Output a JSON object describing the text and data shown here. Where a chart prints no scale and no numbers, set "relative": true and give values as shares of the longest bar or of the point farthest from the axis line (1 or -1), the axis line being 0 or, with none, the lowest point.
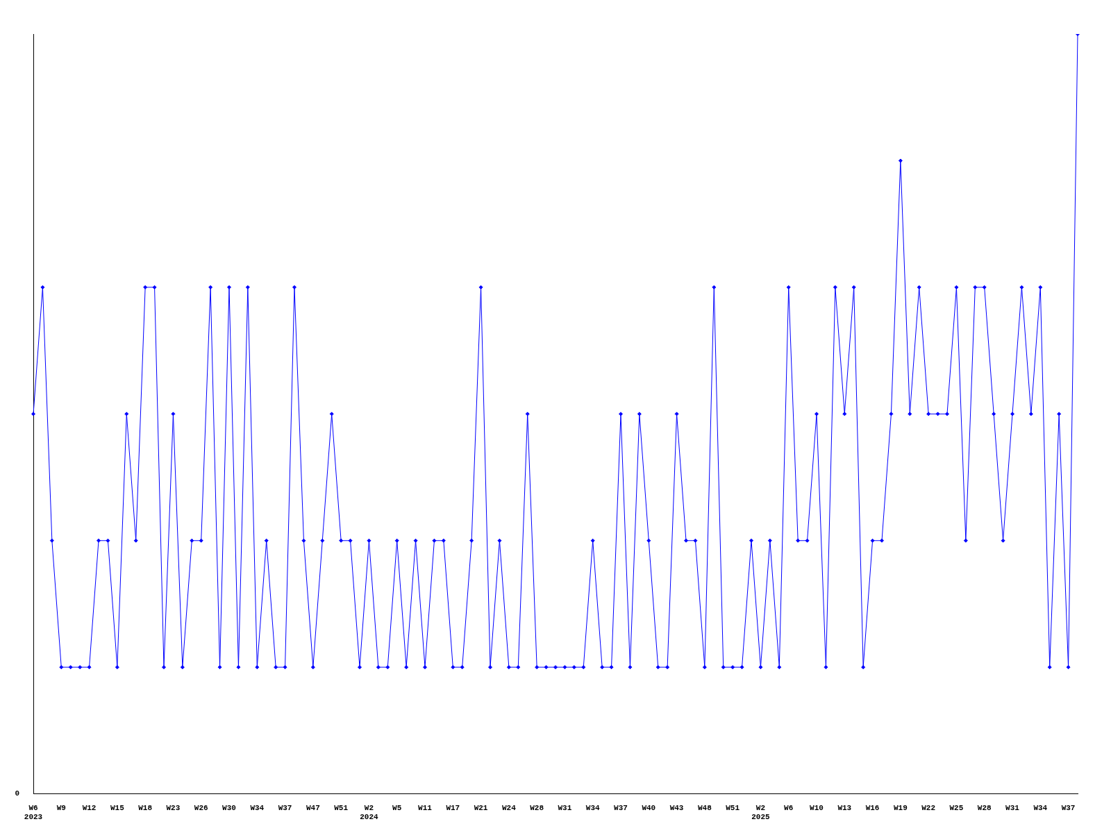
{
  "chart_data": {
    "type": "line",
    "relative": true,
    "marker": "diamond",
    "color": "#0000ff",
    "grid": false,
    "legend": false,
    "annotations": [
      "0"
    ],
    "categories": [
      "W6\n2023",
      null,
      null,
      "W9",
      null,
      null,
      "W12",
      null,
      null,
      "W15",
      null,
      null,
      "W18",
      null,
      null,
      "W23",
      null,
      null,
      "W26",
      null,
      null,
      "W30",
      null,
      null,
      "W34",
      null,
      null,
      "W37",
      null,
      null,
      "W47",
      null,
      null,
      "W51",
      null,
      null,
      "W2\n2024",
      null,
      null,
      "W5",
      null,
      null,
      "W11",
      null,
      null,
      "W17",
      null,
      null,
      "W21",
      null,
      null,
      "W24",
      null,
      null,
      "W28",
      null,
      null,
      "W31",
      null,
      null,
      "W34",
      null,
      null,
      "W37",
      null,
      null,
      "W40",
      null,
      null,
      "W43",
      null,
      null,
      "W48",
      null,
      null,
      "W51",
      null,
      null,
      "W2\n2025",
      null,
      null,
      "W6",
      null,
      null,
      "W10",
      null,
      null,
      "W13",
      null,
      null,
      "W16",
      null,
      null,
      "W19",
      null,
      null,
      "W22",
      null,
      null,
      "W25",
      null,
      null,
      "W28",
      null,
      null,
      "W31",
      null,
      null,
      "W34",
      null,
      null,
      "W37",
      null
    ],
    "values": [
      0.5,
      0.6667,
      0.3333,
      0.1667,
      0.1667,
      0.1667,
      0.1667,
      0.3333,
      0.3333,
      0.1667,
      0.5,
      0.3333,
      0.6667,
      0.6667,
      0.1667,
      0.5,
      0.1667,
      0.3333,
      0.3333,
      0.6667,
      0.1667,
      0.6667,
      0.1667,
      0.6667,
      0.1667,
      0.3333,
      0.1667,
      0.1667,
      0.6667,
      0.3333,
      0.1667,
      0.3333,
      0.5,
      0.3333,
      0.3333,
      0.1667,
      0.3333,
      0.1667,
      0.1667,
      0.3333,
      0.1667,
      0.3333,
      0.1667,
      0.3333,
      0.3333,
      0.1667,
      0.1667,
      0.3333,
      0.6667,
      0.1667,
      0.3333,
      0.1667,
      0.1667,
      0.5,
      0.1667,
      0.1667,
      0.1667,
      0.1667,
      0.1667,
      0.1667,
      0.3333,
      0.1667,
      0.1667,
      0.5,
      0.1667,
      0.5,
      0.3333,
      0.1667,
      0.1667,
      0.5,
      0.3333,
      0.3333,
      0.1667,
      0.6667,
      0.1667,
      0.1667,
      0.1667,
      0.3333,
      0.1667,
      0.3333,
      0.1667,
      0.6667,
      0.3333,
      0.3333,
      0.5,
      0.1667,
      0.6667,
      0.5,
      0.6667,
      0.1667,
      0.3333,
      0.3333,
      0.5,
      0.8333,
      0.5,
      0.6667,
      0.5,
      0.5,
      0.5,
      0.6667,
      0.3333,
      0.6667,
      0.6667,
      0.5,
      0.3333,
      0.5,
      0.6667,
      0.5,
      0.6667,
      0.1667,
      0.5,
      0.1667,
      1
    ]
  }
}
